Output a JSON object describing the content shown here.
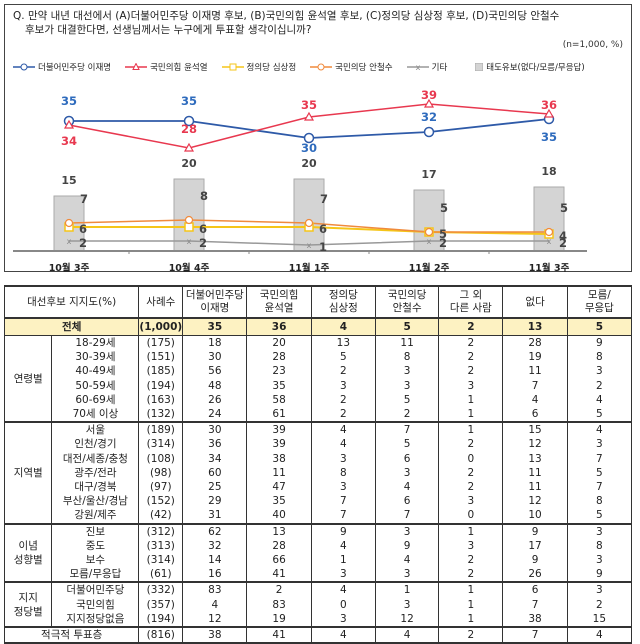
{
  "question": {
    "line1": "Q. 만약 내년 대선에서 (A)더불어민주당 이재명 후보, (B)국민의힘 윤석열 후보, (C)정의당 심상정 후보, (D)국민의당 안철수",
    "line2": "후보가 대결한다면, 선생님께서는 누구에게 투표할 생각이십니까?",
    "sample_note": "(n=1,000, %)"
  },
  "chart_data": {
    "type": "line",
    "title": "Q. 만약 내년 대선에서 (A)더불어민주당 이재명 후보, (B)국민의힘 윤석열 후보, (C)정의당 심상정 후보, (D)국민의당 안철수 후보가 대결한다면, 선생님께서는 누구에게 투표할 생각이십니까?",
    "note": "(n=1,000, %)",
    "categories": [
      "10월 3주",
      "10월 4주",
      "11월 1주",
      "11월 2주",
      "11월 3주"
    ],
    "series": [
      {
        "name": "더불어민주당 이재명",
        "type": "line",
        "color": "#2e5aa8",
        "marker": "circle",
        "values": [
          35,
          35,
          30,
          32,
          35
        ]
      },
      {
        "name": "국민의힘 윤석열",
        "type": "line",
        "color": "#e8384f",
        "marker": "triangle",
        "values": [
          34,
          28,
          35,
          39,
          36
        ]
      },
      {
        "name": "정의당 심상정",
        "type": "line",
        "color": "#f5c518",
        "marker": "square",
        "values": [
          6,
          6,
          6,
          5,
          4
        ]
      },
      {
        "name": "국민의당 안철수",
        "type": "line",
        "color": "#f08a3c",
        "marker": "circle",
        "values": [
          7,
          8,
          7,
          5,
          5
        ]
      },
      {
        "name": "기타",
        "type": "line",
        "color": "#888888",
        "marker": "x",
        "values": [
          2,
          2,
          1,
          2,
          2
        ]
      },
      {
        "name": "태도유보(없다/모름/무응답)",
        "type": "bar",
        "color": "#d4d4d4",
        "values": [
          15,
          20,
          20,
          17,
          18
        ]
      }
    ],
    "legend_position": "top",
    "grid": false
  },
  "legend": [
    {
      "label": "더불어민주당 이재명"
    },
    {
      "label": "국민의힘 윤석열"
    },
    {
      "label": "정의당 심상정"
    },
    {
      "label": "국민의당 안철수"
    },
    {
      "label": "기타"
    },
    {
      "label": "태도유보(없다/모름/무응답)"
    }
  ],
  "table": {
    "headers": {
      "label": "대선후보 지지도(%)",
      "n": "사례수",
      "c1a": "더불어민주당",
      "c1b": "이재명",
      "c2a": "국민의힘",
      "c2b": "윤석열",
      "c3a": "정의당",
      "c3b": "심상정",
      "c4a": "국민의당",
      "c4b": "안철수",
      "c5a": "그 외",
      "c5b": "다른 사람",
      "c6": "없다",
      "c7a": "모름/",
      "c7b": "무응답"
    },
    "total": {
      "label": "전체",
      "n": "(1,000)",
      "v": [
        "35",
        "36",
        "4",
        "5",
        "2",
        "13",
        "5"
      ]
    },
    "groups": [
      {
        "name": "연령별",
        "rows": [
          {
            "label": "18-29세",
            "n": "(175)",
            "v": [
              "18",
              "20",
              "13",
              "11",
              "2",
              "28",
              "9"
            ]
          },
          {
            "label": "30-39세",
            "n": "(151)",
            "v": [
              "30",
              "28",
              "5",
              "8",
              "2",
              "19",
              "8"
            ]
          },
          {
            "label": "40-49세",
            "n": "(185)",
            "v": [
              "56",
              "23",
              "2",
              "3",
              "2",
              "11",
              "3"
            ]
          },
          {
            "label": "50-59세",
            "n": "(194)",
            "v": [
              "48",
              "35",
              "3",
              "3",
              "3",
              "7",
              "2"
            ]
          },
          {
            "label": "60-69세",
            "n": "(163)",
            "v": [
              "26",
              "58",
              "2",
              "5",
              "1",
              "4",
              "4"
            ]
          },
          {
            "label": "70세 이상",
            "n": "(132)",
            "v": [
              "24",
              "61",
              "2",
              "2",
              "1",
              "6",
              "5"
            ]
          }
        ]
      },
      {
        "name": "지역별",
        "rows": [
          {
            "label": "서울",
            "n": "(189)",
            "v": [
              "30",
              "39",
              "4",
              "7",
              "1",
              "15",
              "4"
            ]
          },
          {
            "label": "인천/경기",
            "n": "(314)",
            "v": [
              "36",
              "39",
              "4",
              "5",
              "2",
              "12",
              "3"
            ]
          },
          {
            "label": "대전/세종/충청",
            "n": "(108)",
            "v": [
              "34",
              "38",
              "3",
              "6",
              "0",
              "13",
              "7"
            ]
          },
          {
            "label": "광주/전라",
            "n": "(98)",
            "v": [
              "60",
              "11",
              "8",
              "3",
              "2",
              "11",
              "5"
            ]
          },
          {
            "label": "대구/경북",
            "n": "(97)",
            "v": [
              "25",
              "47",
              "3",
              "4",
              "2",
              "11",
              "7"
            ]
          },
          {
            "label": "부산/울산/경남",
            "n": "(152)",
            "v": [
              "29",
              "35",
              "7",
              "6",
              "3",
              "12",
              "8"
            ]
          },
          {
            "label": "강원/제주",
            "n": "(42)",
            "v": [
              "31",
              "40",
              "7",
              "7",
              "0",
              "10",
              "5"
            ]
          }
        ]
      },
      {
        "name": "이념 성향별",
        "name1": "이념",
        "name2": "성향별",
        "rows": [
          {
            "label": "진보",
            "n": "(312)",
            "v": [
              "62",
              "13",
              "9",
              "3",
              "1",
              "9",
              "3"
            ]
          },
          {
            "label": "중도",
            "n": "(313)",
            "v": [
              "32",
              "28",
              "4",
              "9",
              "3",
              "17",
              "8"
            ]
          },
          {
            "label": "보수",
            "n": "(314)",
            "v": [
              "14",
              "66",
              "1",
              "4",
              "2",
              "9",
              "3"
            ]
          },
          {
            "label": "모름/무응답",
            "n": "(61)",
            "v": [
              "16",
              "41",
              "3",
              "3",
              "2",
              "26",
              "9"
            ]
          }
        ]
      },
      {
        "name": "지지 정당별",
        "name1": "지지",
        "name2": "정당별",
        "rows": [
          {
            "label": "더불어민주당",
            "n": "(332)",
            "v": [
              "83",
              "2",
              "4",
              "1",
              "1",
              "6",
              "3"
            ]
          },
          {
            "label": "국민의힘",
            "n": "(357)",
            "v": [
              "4",
              "83",
              "0",
              "3",
              "1",
              "7",
              "2"
            ]
          },
          {
            "label": "지지정당없음",
            "n": "(194)",
            "v": [
              "12",
              "19",
              "3",
              "12",
              "1",
              "38",
              "15"
            ]
          }
        ]
      }
    ],
    "footer": {
      "label": "적극적 투표층",
      "n": "(816)",
      "v": [
        "38",
        "41",
        "4",
        "4",
        "2",
        "7",
        "4"
      ]
    }
  }
}
